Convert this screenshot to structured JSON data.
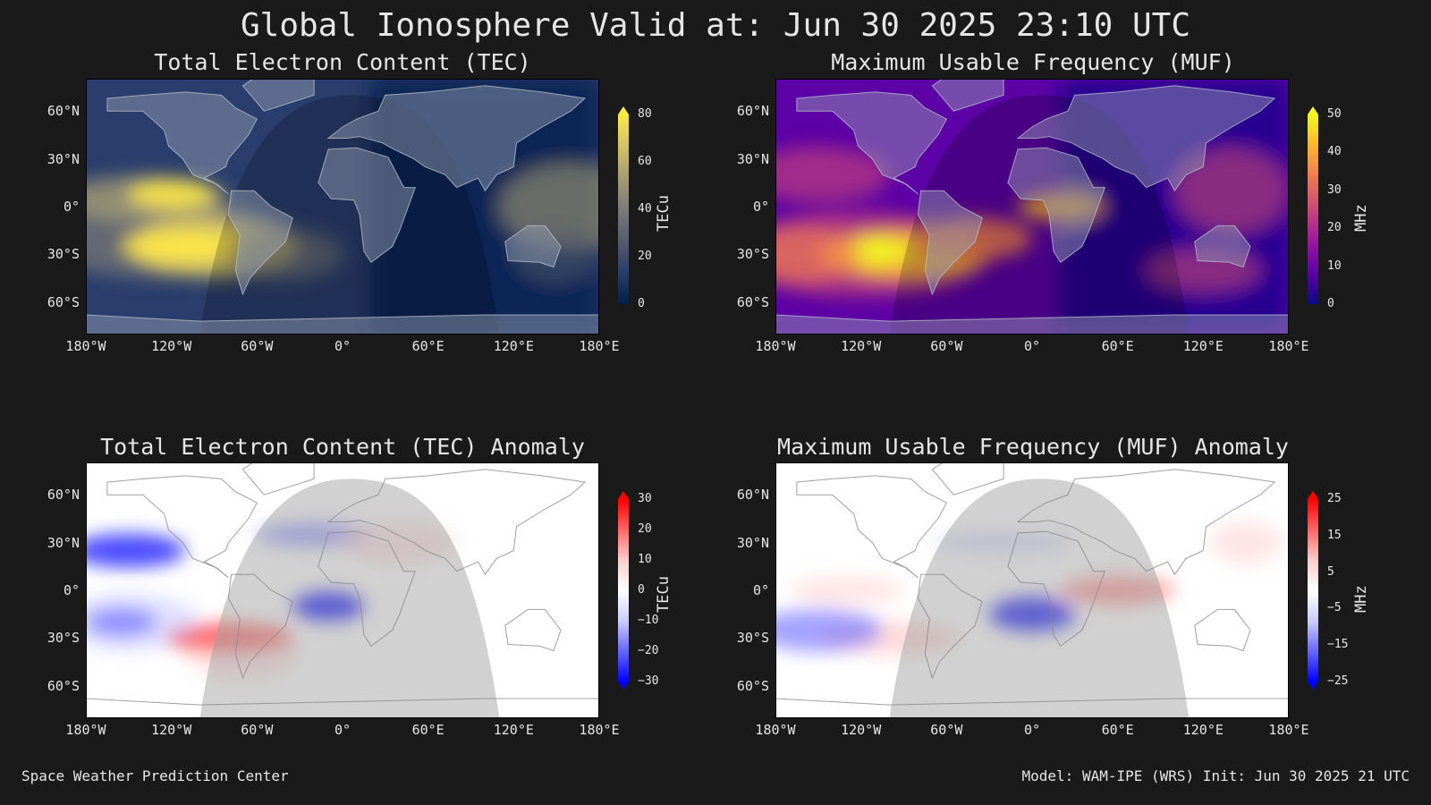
{
  "title": "Global Ionosphere Valid at: Jun 30 2025 23:10 UTC",
  "footer": {
    "left": "Space Weather Prediction Center",
    "right": "Model: WAM-IPE (WRS) Init: Jun 30 2025 21 UTC"
  },
  "axes": {
    "lat_ticks": [
      "60°N",
      "30°N",
      "0°",
      "30°S",
      "60°S"
    ],
    "lon_ticks": [
      "180°W",
      "120°W",
      "60°W",
      "0°",
      "60°E",
      "120°E",
      "180°E"
    ]
  },
  "chart_data": [
    {
      "type": "heatmap",
      "title": "Total Electron Content (TEC)",
      "colorbar_label": "TECu",
      "colorbar_ticks": [
        "80",
        "60",
        "40",
        "20",
        "0"
      ],
      "colormap": "cividis",
      "range": [
        0,
        80
      ],
      "colors": [
        "#00204c",
        "#2a3d6c",
        "#575c6e",
        "#7c7b78",
        "#a59c74",
        "#d3c166",
        "#ffe945"
      ]
    },
    {
      "type": "heatmap",
      "title": "Maximum Usable Frequency (MUF)",
      "colorbar_label": "MHz",
      "colorbar_ticks": [
        "50",
        "40",
        "30",
        "20",
        "10",
        "0"
      ],
      "colormap": "plasma",
      "range": [
        0,
        50
      ],
      "colors": [
        "#0d0887",
        "#5c01a6",
        "#9c179e",
        "#cc4778",
        "#ed7953",
        "#fdb42f",
        "#f0f921"
      ]
    },
    {
      "type": "heatmap",
      "title": "Total Electron Content (TEC) Anomaly",
      "colorbar_label": "TECu",
      "colorbar_ticks": [
        "30",
        "20",
        "10",
        "0",
        "−10",
        "−20",
        "−30"
      ],
      "colormap": "bwr",
      "range": [
        -30,
        30
      ],
      "colors": [
        "#0000ff",
        "#6666ff",
        "#ccccff",
        "#ffffff",
        "#ffcccc",
        "#ff6666",
        "#ff0000"
      ]
    },
    {
      "type": "heatmap",
      "title": "Maximum Usable Frequency (MUF) Anomaly",
      "colorbar_label": "MHz",
      "colorbar_ticks": [
        "25",
        "15",
        "5",
        "−5",
        "−15",
        "−25"
      ],
      "colormap": "bwr",
      "range": [
        -25,
        25
      ],
      "colors": [
        "#0000ff",
        "#6666ff",
        "#ccccff",
        "#ffffff",
        "#ffcccc",
        "#ff6666",
        "#ff0000"
      ]
    }
  ]
}
